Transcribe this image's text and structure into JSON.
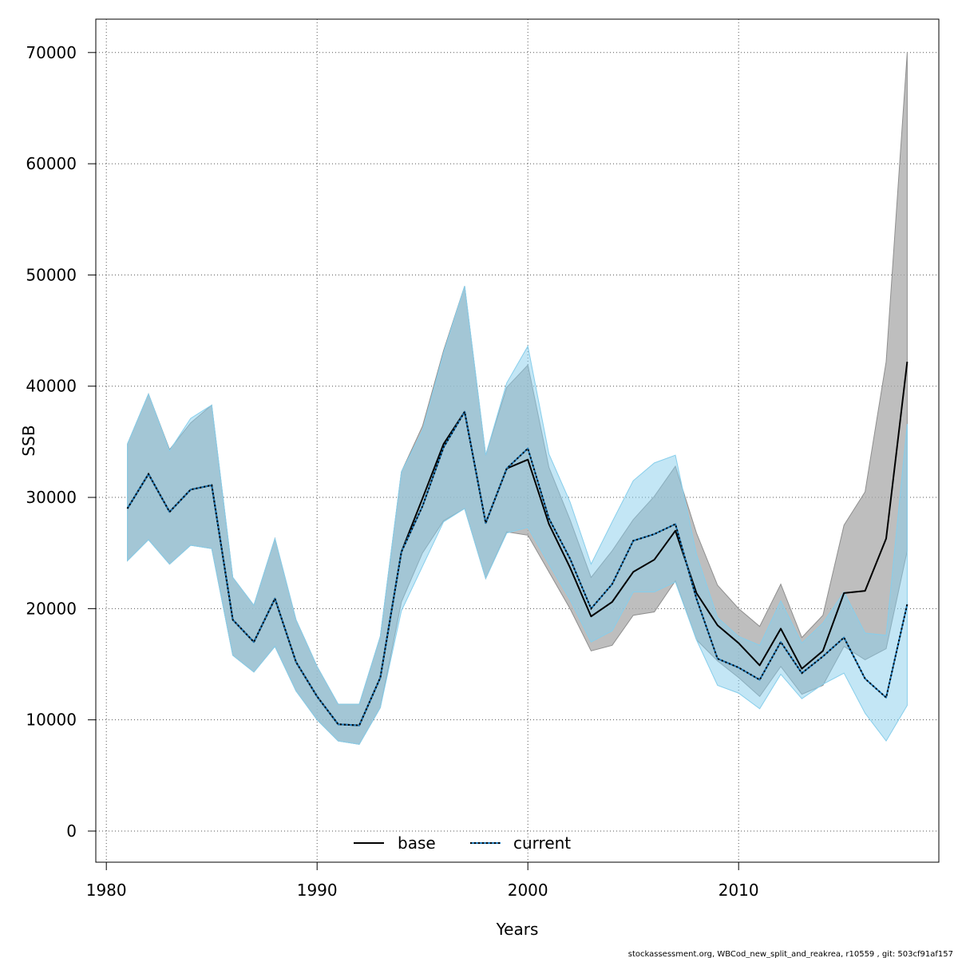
{
  "chart_data": {
    "type": "line",
    "xlabel": "Years",
    "ylabel": "SSB",
    "xlim": [
      1979.5,
      2019.5
    ],
    "ylim": [
      -2800,
      73000
    ],
    "x_ticks": [
      1980,
      1990,
      2000,
      2010
    ],
    "y_ticks": [
      0,
      10000,
      20000,
      30000,
      40000,
      50000,
      60000,
      70000
    ],
    "grid": true,
    "legend_placement": "bottom-center",
    "x": [
      1981,
      1982,
      1983,
      1984,
      1985,
      1986,
      1987,
      1988,
      1989,
      1990,
      1991,
      1992,
      1993,
      1994,
      1995,
      1996,
      1997,
      1998,
      1999,
      2000,
      2001,
      2002,
      2003,
      2004,
      2005,
      2006,
      2007,
      2008,
      2009,
      2010,
      2011,
      2012,
      2013,
      2014,
      2015,
      2016,
      2017,
      2018
    ],
    "series": [
      {
        "name": "base",
        "color": "#000000",
        "band_color": "#bebebe",
        "line_style": "solid",
        "values": [
          29000,
          32100,
          28700,
          30700,
          31100,
          19000,
          17000,
          20900,
          15200,
          12100,
          9600,
          9500,
          13800,
          25100,
          29900,
          34800,
          37700,
          27700,
          32600,
          33400,
          27600,
          23700,
          19300,
          20600,
          23300,
          24400,
          27000,
          21400,
          18500,
          16900,
          14900,
          18200,
          14600,
          16200,
          21400,
          21600,
          26300,
          42200
        ],
        "lower": [
          24300,
          26200,
          24000,
          25700,
          25400,
          15800,
          14300,
          16600,
          12600,
          10000,
          8100,
          7800,
          11100,
          20600,
          25000,
          27900,
          29000,
          22700,
          26900,
          26600,
          23300,
          20000,
          16200,
          16700,
          19400,
          19700,
          22500,
          17200,
          15300,
          13800,
          12100,
          14800,
          12300,
          13100,
          16600,
          15400,
          16400,
          25200
        ],
        "upper": [
          34800,
          39300,
          34300,
          36700,
          38300,
          22800,
          20300,
          26300,
          19000,
          14800,
          11400,
          11400,
          17500,
          32300,
          36400,
          43200,
          49000,
          33800,
          39900,
          41900,
          32700,
          28000,
          22800,
          25200,
          28000,
          30100,
          32800,
          26800,
          22100,
          20000,
          18400,
          22200,
          17400,
          19400,
          27500,
          30500,
          42200,
          70000
        ]
      },
      {
        "name": "current",
        "color": "#000000",
        "line_color_2": "#1f77b4",
        "band_color": "#87ceeb",
        "line_style": "dotted",
        "values": [
          29000,
          32100,
          28700,
          30700,
          31100,
          19000,
          17000,
          20900,
          15200,
          12100,
          9600,
          9500,
          13800,
          25100,
          29200,
          34500,
          37700,
          27700,
          32600,
          34400,
          28100,
          24500,
          20000,
          22200,
          26100,
          26700,
          27600,
          20900,
          15500,
          14700,
          13600,
          17000,
          14200,
          15700,
          17400,
          13700,
          12000,
          20400
        ],
        "lower": [
          24300,
          26200,
          24000,
          25700,
          25400,
          15800,
          14300,
          16600,
          12600,
          10000,
          8100,
          7800,
          11100,
          19800,
          23800,
          27800,
          29000,
          22700,
          26800,
          27300,
          24000,
          20800,
          17000,
          18000,
          21500,
          21500,
          22400,
          17200,
          13100,
          12400,
          11000,
          14100,
          11900,
          13200,
          14200,
          10600,
          8100,
          11300
        ],
        "upper": [
          34800,
          39300,
          34200,
          37100,
          38300,
          22800,
          20300,
          26300,
          19000,
          14800,
          11400,
          11400,
          17500,
          32300,
          36000,
          43000,
          49000,
          33800,
          40300,
          43600,
          33900,
          29600,
          24000,
          27800,
          31500,
          33100,
          33800,
          24900,
          19200,
          17500,
          16700,
          20700,
          16900,
          18700,
          21500,
          17800,
          17600,
          36600
        ]
      }
    ],
    "legend": [
      "base",
      "current"
    ],
    "footer_text": "stockassessment.org, WBCod_new_split_and_reakrea, r10559 , git: 503cf91af157"
  }
}
